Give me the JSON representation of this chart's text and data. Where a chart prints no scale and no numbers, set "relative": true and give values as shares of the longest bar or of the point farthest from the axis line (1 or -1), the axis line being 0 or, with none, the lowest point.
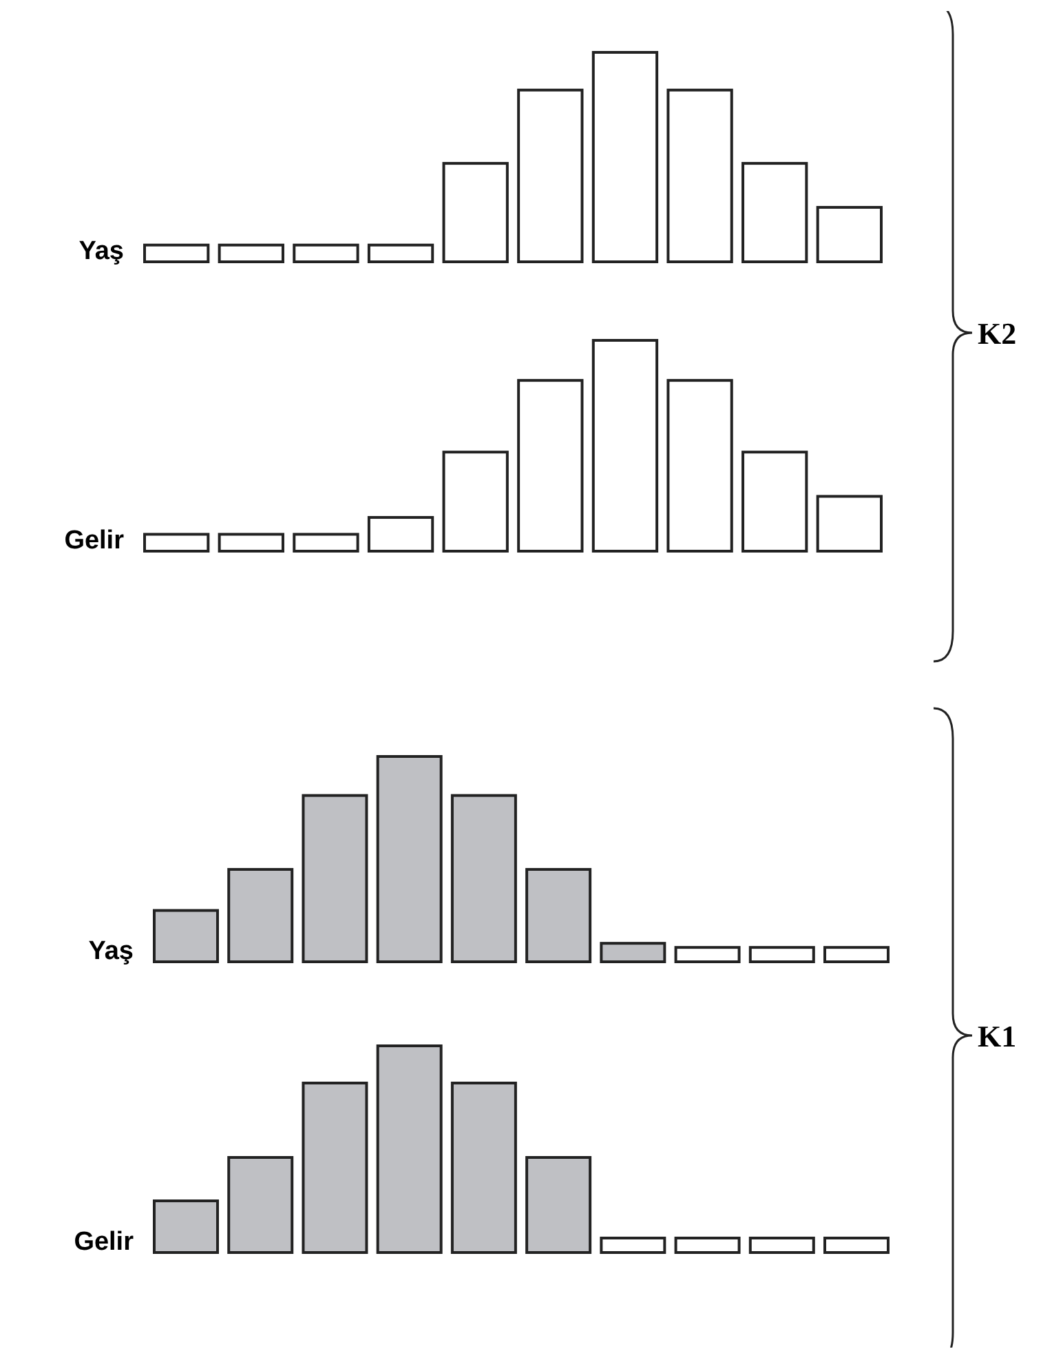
{
  "chart_data": [
    {
      "type": "bar",
      "relative": true,
      "ylabel": "Yaş",
      "annotations": [
        "K2"
      ],
      "categories": [
        null,
        null,
        null,
        null,
        null,
        null,
        null,
        null,
        null,
        null
      ],
      "values": [
        0.08,
        0.08,
        0.08,
        0.08,
        0.47,
        0.82,
        1,
        0.82,
        0.47,
        0.26
      ],
      "colors": [
        "#ffffff",
        "#ffffff",
        "#ffffff",
        "#ffffff",
        "#ffffff",
        "#ffffff",
        "#ffffff",
        "#ffffff",
        "#ffffff",
        "#ffffff"
      ]
    },
    {
      "type": "bar",
      "relative": true,
      "ylabel": "Gelir",
      "categories": [
        null,
        null,
        null,
        null,
        null,
        null,
        null,
        null,
        null,
        null
      ],
      "values": [
        0.08,
        0.08,
        0.08,
        0.16,
        0.47,
        0.81,
        1,
        0.81,
        0.47,
        0.26
      ],
      "colors": [
        "#ffffff",
        "#ffffff",
        "#ffffff",
        "#ffffff",
        "#ffffff",
        "#ffffff",
        "#ffffff",
        "#ffffff",
        "#ffffff",
        "#ffffff"
      ]
    },
    {
      "type": "bar",
      "relative": true,
      "ylabel": "Yaş",
      "annotations": [
        "K1"
      ],
      "categories": [
        null,
        null,
        null,
        null,
        null,
        null,
        null,
        null,
        null,
        null
      ],
      "values": [
        0.25,
        0.45,
        0.81,
        1,
        0.81,
        0.45,
        0.09,
        0.07,
        0.07,
        0.07
      ],
      "colors": [
        "#bfc0c4",
        "#bfc0c4",
        "#bfc0c4",
        "#bfc0c4",
        "#bfc0c4",
        "#bfc0c4",
        "#bfc0c4",
        "#ffffff",
        "#ffffff",
        "#ffffff"
      ]
    },
    {
      "type": "bar",
      "relative": true,
      "ylabel": "Gelir",
      "categories": [
        null,
        null,
        null,
        null,
        null,
        null,
        null,
        null,
        null,
        null
      ],
      "values": [
        0.25,
        0.46,
        0.82,
        1,
        0.82,
        0.46,
        0.07,
        0.07,
        0.07,
        0.07
      ],
      "colors": [
        "#bfc0c4",
        "#bfc0c4",
        "#bfc0c4",
        "#bfc0c4",
        "#bfc0c4",
        "#bfc0c4",
        "#ffffff",
        "#ffffff",
        "#ffffff",
        "#ffffff"
      ]
    }
  ]
}
